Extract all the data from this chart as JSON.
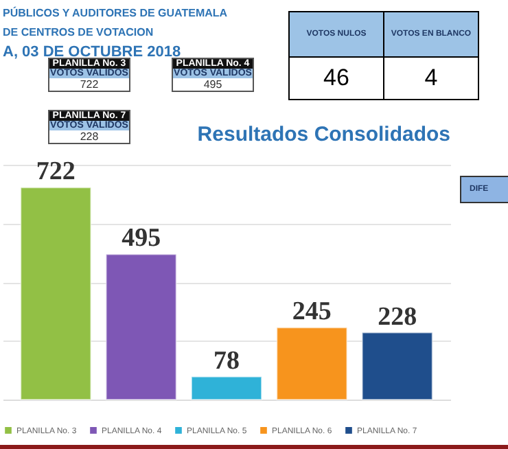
{
  "chart_data": [
    {
      "type": "other",
      "annotations": [
        "PÚBLICOS Y AUDITORES DE GUATEMALA",
        "DE CENTROS DE VOTACION",
        "A, 03 DE OCTUBRE 2018",
        "PLANILLA No. 3",
        "VOTOS VALIDOS",
        "722",
        "PLANILLA No. 4",
        "VOTOS VALIDOS",
        "495",
        "PLANILLA No. 7",
        "VOTOS VALIDOS",
        "228",
        "VOTOS NULOS",
        "46",
        "VOTOS EN BLANCO",
        "4",
        "DIFE"
      ]
    },
    {
      "type": "bar",
      "title": "Resultados Consolidados",
      "categories": [
        null
      ],
      "series": [
        {
          "name": "PLANILLA No. 3",
          "color": "#92c045",
          "values": [
            722
          ]
        },
        {
          "name": "PLANILLA No. 4",
          "color": "#7e57b5",
          "values": [
            495
          ]
        },
        {
          "name": "PLANILLA No. 5",
          "color": "#2fb2d8",
          "values": [
            78
          ]
        },
        {
          "name": "PLANILLA No. 6",
          "color": "#f7941d",
          "values": [
            245
          ]
        },
        {
          "name": "PLANILLA No. 7",
          "color": "#1f4e8c",
          "values": [
            228
          ]
        }
      ],
      "grid": "y",
      "tick_labels": false,
      "data_labels": true,
      "legend": "bottom"
    }
  ]
}
